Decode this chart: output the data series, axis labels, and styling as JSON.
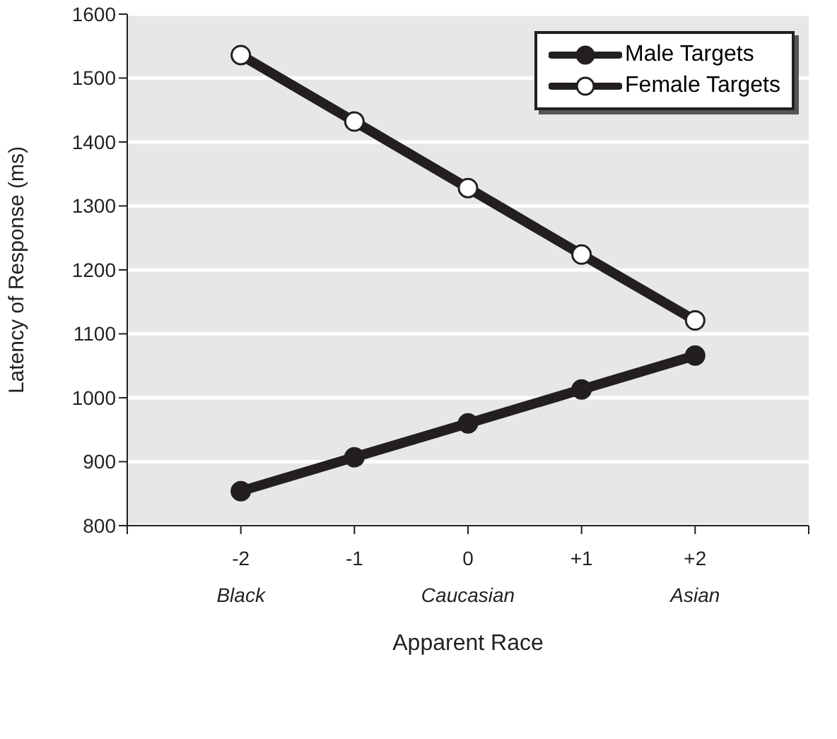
{
  "chart_data": {
    "type": "line",
    "xlabel": "Apparent Race",
    "ylabel": "Latency of Response (ms)",
    "x": [
      -2,
      -1,
      0,
      1,
      2
    ],
    "series": [
      {
        "name": "Male Targets",
        "color": "#231f20",
        "values": [
          854,
          907,
          960,
          1013,
          1066
        ]
      },
      {
        "name": "Female Targets",
        "color": "#231f20",
        "values": [
          1536,
          1432,
          1328,
          1224,
          1121
        ]
      }
    ],
    "xlim": [
      -3,
      3
    ],
    "xticks": [
      {
        "value": -3,
        "label": null
      },
      {
        "value": -2,
        "label": "-2\nBlack"
      },
      {
        "value": -1,
        "label": "-1"
      },
      {
        "value": 0,
        "label": "0\nCaucasian"
      },
      {
        "value": 1,
        "label": "+1"
      },
      {
        "value": 2,
        "label": "+2\nAsian"
      },
      {
        "value": 3,
        "label": null
      }
    ],
    "ylim": [
      800,
      1600
    ],
    "yticks": [
      800,
      900,
      1000,
      1100,
      1200,
      1300,
      1400,
      1500,
      1600
    ],
    "grid": "y",
    "legend": "top right",
    "marker": "circle",
    "line_style": "solid"
  }
}
